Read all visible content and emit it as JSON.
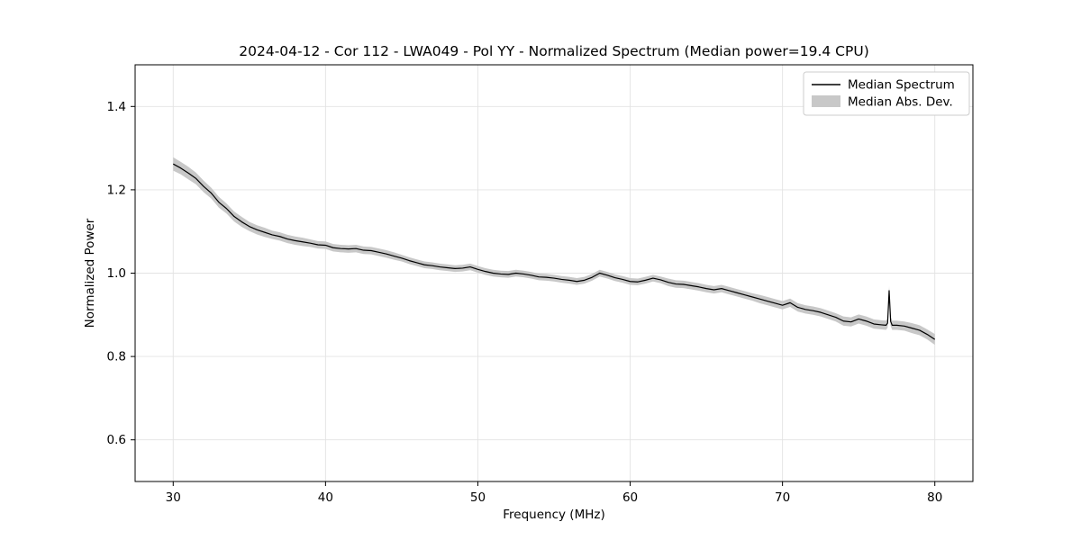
{
  "chart_data": {
    "type": "line",
    "title": "2024-04-12 - Cor 112 - LWA049 - Pol YY - Normalized Spectrum (Median power=19.4 CPU)",
    "xlabel": "Frequency (MHz)",
    "ylabel": "Normalized Power",
    "xlim": [
      27.5,
      82.5
    ],
    "ylim": [
      0.5,
      1.5
    ],
    "xticks": [
      30,
      40,
      50,
      60,
      70,
      80
    ],
    "yticks": [
      0.6,
      0.8,
      1.0,
      1.2,
      1.4
    ],
    "grid": true,
    "legend_position": "upper right",
    "legend": [
      "Median Spectrum",
      "Median Abs. Dev."
    ],
    "colors": {
      "line": "#000000",
      "band": "#c8c8c8",
      "grid": "#e3e3e3"
    },
    "x": [
      30,
      30.5,
      31,
      31.5,
      32,
      32.5,
      33,
      33.5,
      34,
      34.5,
      35,
      35.5,
      36,
      36.5,
      37,
      37.5,
      38,
      38.5,
      39,
      39.5,
      40,
      40.5,
      41,
      41.5,
      42,
      42.5,
      43,
      43.5,
      44,
      44.5,
      45,
      45.5,
      46,
      46.5,
      47,
      47.5,
      48,
      48.5,
      49,
      49.5,
      50,
      50.5,
      51,
      51.5,
      52,
      52.5,
      53,
      53.5,
      54,
      54.5,
      55,
      55.5,
      56,
      56.5,
      57,
      57.5,
      58,
      58.5,
      59,
      59.5,
      60,
      60.5,
      61,
      61.5,
      62,
      62.5,
      63,
      63.5,
      64,
      64.5,
      65,
      65.5,
      66,
      66.5,
      67,
      67.5,
      68,
      68.5,
      69,
      69.5,
      70,
      70.5,
      71,
      71.5,
      72,
      72.5,
      73,
      73.5,
      74,
      74.5,
      75,
      75.5,
      76,
      76.5,
      76.8,
      76.9,
      77,
      77.1,
      77.2,
      77.5,
      78,
      78.5,
      79,
      79.5,
      80
    ],
    "median": [
      1.262,
      1.252,
      1.24,
      1.227,
      1.208,
      1.192,
      1.17,
      1.155,
      1.136,
      1.123,
      1.112,
      1.104,
      1.098,
      1.092,
      1.088,
      1.082,
      1.078,
      1.075,
      1.072,
      1.068,
      1.067,
      1.061,
      1.059,
      1.058,
      1.059,
      1.055,
      1.054,
      1.05,
      1.046,
      1.041,
      1.036,
      1.03,
      1.025,
      1.02,
      1.018,
      1.015,
      1.013,
      1.011,
      1.012,
      1.015,
      1.009,
      1.004,
      1.0,
      0.998,
      0.997,
      1.0,
      0.998,
      0.995,
      0.991,
      0.99,
      0.988,
      0.985,
      0.983,
      0.98,
      0.983,
      0.99,
      1.0,
      0.995,
      0.989,
      0.985,
      0.98,
      0.979,
      0.983,
      0.988,
      0.984,
      0.978,
      0.974,
      0.973,
      0.97,
      0.967,
      0.963,
      0.96,
      0.963,
      0.958,
      0.953,
      0.948,
      0.943,
      0.938,
      0.933,
      0.928,
      0.923,
      0.929,
      0.918,
      0.913,
      0.91,
      0.906,
      0.9,
      0.894,
      0.885,
      0.883,
      0.89,
      0.885,
      0.878,
      0.876,
      0.875,
      0.88,
      0.958,
      0.884,
      0.875,
      0.875,
      0.873,
      0.868,
      0.863,
      0.853,
      0.841
    ],
    "mad": [
      0.016,
      0.015,
      0.015,
      0.014,
      0.014,
      0.013,
      0.013,
      0.012,
      0.012,
      0.012,
      0.011,
      0.011,
      0.011,
      0.01,
      0.01,
      0.01,
      0.01,
      0.01,
      0.009,
      0.009,
      0.009,
      0.009,
      0.009,
      0.009,
      0.009,
      0.009,
      0.009,
      0.009,
      0.009,
      0.009,
      0.008,
      0.008,
      0.008,
      0.008,
      0.008,
      0.008,
      0.008,
      0.008,
      0.008,
      0.008,
      0.008,
      0.008,
      0.008,
      0.008,
      0.008,
      0.008,
      0.008,
      0.008,
      0.008,
      0.008,
      0.008,
      0.008,
      0.008,
      0.008,
      0.008,
      0.008,
      0.008,
      0.008,
      0.008,
      0.008,
      0.008,
      0.008,
      0.008,
      0.008,
      0.008,
      0.009,
      0.009,
      0.009,
      0.009,
      0.009,
      0.009,
      0.009,
      0.009,
      0.009,
      0.009,
      0.009,
      0.009,
      0.01,
      0.01,
      0.01,
      0.01,
      0.01,
      0.01,
      0.01,
      0.01,
      0.01,
      0.01,
      0.01,
      0.011,
      0.011,
      0.011,
      0.011,
      0.011,
      0.011,
      0.011,
      0.011,
      0.011,
      0.011,
      0.011,
      0.011,
      0.011,
      0.012,
      0.012,
      0.012,
      0.013
    ]
  }
}
